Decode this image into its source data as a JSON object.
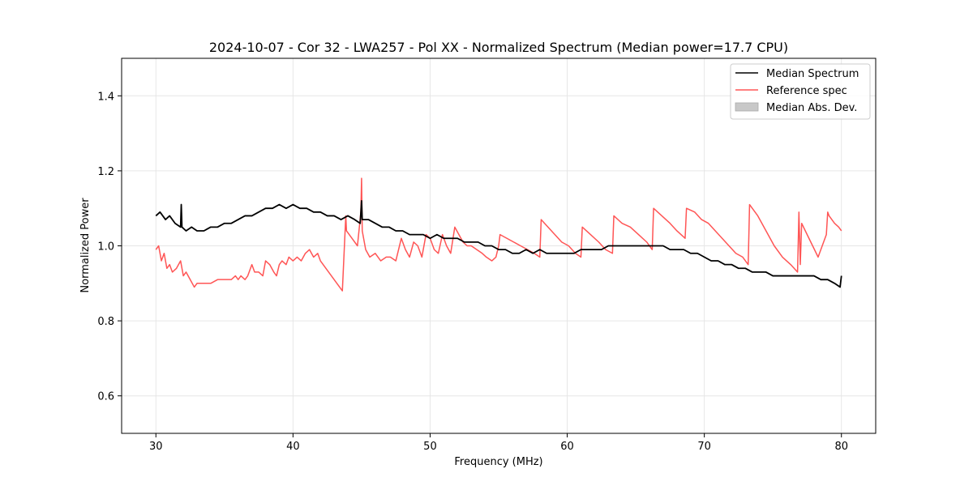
{
  "chart_data": {
    "type": "line",
    "title": "2024-10-07 - Cor 32 - LWA257 - Pol XX - Normalized Spectrum (Median power=17.7 CPU)",
    "xlabel": "Frequency (MHz)",
    "ylabel": "Normalized Power",
    "xlim": [
      27.5,
      82.5
    ],
    "ylim": [
      0.5,
      1.5
    ],
    "xticks": [
      30,
      40,
      50,
      60,
      70,
      80
    ],
    "yticks": [
      0.6,
      0.8,
      1.0,
      1.2,
      1.4
    ],
    "xtick_labels": [
      "30",
      "40",
      "50",
      "60",
      "70",
      "80"
    ],
    "ytick_labels": [
      "0.6",
      "0.8",
      "1.0",
      "1.2",
      "1.4"
    ],
    "grid": true,
    "legend_position": "top-right",
    "legend": [
      "Median Spectrum",
      "Reference spec",
      "Median Abs. Dev."
    ],
    "series": [
      {
        "name": "Median Spectrum",
        "color": "#000000",
        "x": [
          30.0,
          30.3,
          30.7,
          31.0,
          31.4,
          31.8,
          31.85,
          31.9,
          32.2,
          32.6,
          33.0,
          33.5,
          34.0,
          34.5,
          35.0,
          35.5,
          36.0,
          36.5,
          37.0,
          37.5,
          38.0,
          38.5,
          39.0,
          39.5,
          40.0,
          40.5,
          41.0,
          41.5,
          42.0,
          42.5,
          43.0,
          43.5,
          44.0,
          44.5,
          44.9,
          45.0,
          45.05,
          45.5,
          46.0,
          46.5,
          47.0,
          47.5,
          48.0,
          48.5,
          49.0,
          49.5,
          50.0,
          50.5,
          51.0,
          51.5,
          52.0,
          52.5,
          53.0,
          53.5,
          54.0,
          54.5,
          55.0,
          55.5,
          56.0,
          56.5,
          57.0,
          57.5,
          58.0,
          58.5,
          59.0,
          59.5,
          60.0,
          60.5,
          61.0,
          61.5,
          62.0,
          62.5,
          63.0,
          63.5,
          64.0,
          64.5,
          65.0,
          65.5,
          66.0,
          66.5,
          67.0,
          67.5,
          68.0,
          68.5,
          69.0,
          69.5,
          70.0,
          70.5,
          71.0,
          71.5,
          72.0,
          72.5,
          73.0,
          73.5,
          74.0,
          74.5,
          75.0,
          75.5,
          76.0,
          76.5,
          77.0,
          77.5,
          78.0,
          78.5,
          79.0,
          79.5,
          79.9,
          80.0
        ],
        "values": [
          1.08,
          1.09,
          1.07,
          1.08,
          1.06,
          1.05,
          1.11,
          1.05,
          1.04,
          1.05,
          1.04,
          1.04,
          1.05,
          1.05,
          1.06,
          1.06,
          1.07,
          1.08,
          1.08,
          1.09,
          1.1,
          1.1,
          1.11,
          1.1,
          1.11,
          1.1,
          1.1,
          1.09,
          1.09,
          1.08,
          1.08,
          1.07,
          1.08,
          1.07,
          1.06,
          1.12,
          1.07,
          1.07,
          1.06,
          1.05,
          1.05,
          1.04,
          1.04,
          1.03,
          1.03,
          1.03,
          1.02,
          1.03,
          1.02,
          1.02,
          1.02,
          1.01,
          1.01,
          1.01,
          1.0,
          1.0,
          0.99,
          0.99,
          0.98,
          0.98,
          0.99,
          0.98,
          0.99,
          0.98,
          0.98,
          0.98,
          0.98,
          0.98,
          0.99,
          0.99,
          0.99,
          0.99,
          1.0,
          1.0,
          1.0,
          1.0,
          1.0,
          1.0,
          1.0,
          1.0,
          1.0,
          0.99,
          0.99,
          0.99,
          0.98,
          0.98,
          0.97,
          0.96,
          0.96,
          0.95,
          0.95,
          0.94,
          0.94,
          0.93,
          0.93,
          0.93,
          0.92,
          0.92,
          0.92,
          0.92,
          0.92,
          0.92,
          0.92,
          0.91,
          0.91,
          0.9,
          0.89,
          0.92
        ]
      },
      {
        "name": "Reference spec",
        "color": "#ff5555",
        "x": [
          30.0,
          30.2,
          30.4,
          30.6,
          30.8,
          31.0,
          31.2,
          31.5,
          31.8,
          32.0,
          32.2,
          32.5,
          32.8,
          33.0,
          33.5,
          34.0,
          34.5,
          35.0,
          35.5,
          35.8,
          36.0,
          36.2,
          36.5,
          36.7,
          37.0,
          37.2,
          37.5,
          37.8,
          38.0,
          38.3,
          38.6,
          38.8,
          39.0,
          39.2,
          39.5,
          39.7,
          40.0,
          40.3,
          40.6,
          40.9,
          41.2,
          41.5,
          41.8,
          42.0,
          42.4,
          42.8,
          43.2,
          43.6,
          43.85,
          43.9,
          44.3,
          44.7,
          44.95,
          45.0,
          45.05,
          45.3,
          45.6,
          46.0,
          46.4,
          46.8,
          47.1,
          47.5,
          47.9,
          48.2,
          48.5,
          48.8,
          49.1,
          49.4,
          49.7,
          50.0,
          50.3,
          50.6,
          50.9,
          51.2,
          51.5,
          51.8,
          52.1,
          52.4,
          52.7,
          53.0,
          53.4,
          53.8,
          54.1,
          54.5,
          54.8,
          55.0,
          55.1,
          55.6,
          56.1,
          56.6,
          57.1,
          57.6,
          58.0,
          58.1,
          58.6,
          59.1,
          59.6,
          60.1,
          60.6,
          61.0,
          61.1,
          61.7,
          62.3,
          62.8,
          63.3,
          63.4,
          64.0,
          64.6,
          65.2,
          65.8,
          66.2,
          66.3,
          66.9,
          67.5,
          68.0,
          68.6,
          68.7,
          69.3,
          69.8,
          70.3,
          70.8,
          71.3,
          71.8,
          72.3,
          72.8,
          73.2,
          73.3,
          73.9,
          74.5,
          75.1,
          75.7,
          76.3,
          76.8,
          76.9,
          77.0,
          77.1,
          77.5,
          77.9,
          78.3,
          78.9,
          79.0,
          79.1,
          79.5,
          79.8,
          80.0
        ],
        "values": [
          0.99,
          1.0,
          0.96,
          0.98,
          0.94,
          0.95,
          0.93,
          0.94,
          0.96,
          0.92,
          0.93,
          0.91,
          0.89,
          0.9,
          0.9,
          0.9,
          0.91,
          0.91,
          0.91,
          0.92,
          0.91,
          0.92,
          0.91,
          0.92,
          0.95,
          0.93,
          0.93,
          0.92,
          0.96,
          0.95,
          0.93,
          0.92,
          0.95,
          0.96,
          0.95,
          0.97,
          0.96,
          0.97,
          0.96,
          0.98,
          0.99,
          0.97,
          0.98,
          0.96,
          0.94,
          0.92,
          0.9,
          0.88,
          1.08,
          1.04,
          1.02,
          1.0,
          1.09,
          1.18,
          1.04,
          0.99,
          0.97,
          0.98,
          0.96,
          0.97,
          0.97,
          0.96,
          1.02,
          0.99,
          0.97,
          1.01,
          1.0,
          0.97,
          1.03,
          1.02,
          0.99,
          0.98,
          1.03,
          1.0,
          0.98,
          1.05,
          1.03,
          1.01,
          1.0,
          1.0,
          0.99,
          0.98,
          0.97,
          0.96,
          0.97,
          1.0,
          1.03,
          1.02,
          1.01,
          1.0,
          0.99,
          0.98,
          0.97,
          1.07,
          1.05,
          1.03,
          1.01,
          1.0,
          0.98,
          0.97,
          1.05,
          1.03,
          1.01,
          0.99,
          0.98,
          1.08,
          1.06,
          1.05,
          1.03,
          1.01,
          0.99,
          1.1,
          1.08,
          1.06,
          1.04,
          1.02,
          1.1,
          1.09,
          1.07,
          1.06,
          1.04,
          1.02,
          1.0,
          0.98,
          0.97,
          0.95,
          1.11,
          1.08,
          1.04,
          1.0,
          0.97,
          0.95,
          0.93,
          1.09,
          0.95,
          1.06,
          1.03,
          1.0,
          0.97,
          1.03,
          1.09,
          1.08,
          1.06,
          1.05,
          1.04
        ]
      }
    ]
  }
}
